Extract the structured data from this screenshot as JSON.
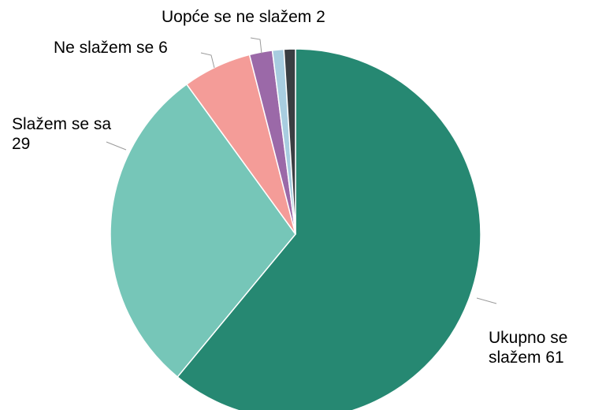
{
  "chart_data": {
    "type": "pie",
    "categories": [
      "Ukupno se slažem",
      "Slažem se sa",
      "Ne slažem se",
      "Uopće se ne slažem",
      null,
      null
    ],
    "values": [
      61,
      29,
      6,
      2,
      1,
      1
    ],
    "colors": [
      "#268872",
      "#76c6b8",
      "#f49c98",
      "#9b69a8",
      "#a8cde0",
      "#3a3e42"
    ]
  }
}
